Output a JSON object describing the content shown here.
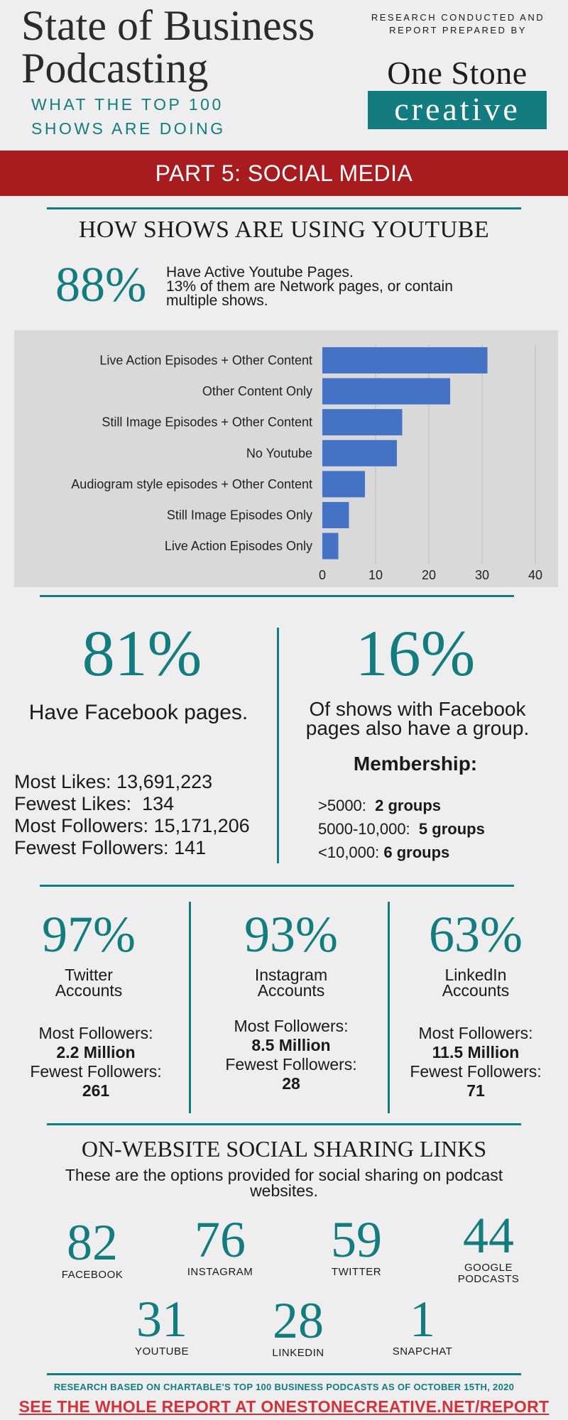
{
  "header": {
    "title_line1": "State of Business",
    "title_line2": "Podcasting",
    "subtitle": "What the top 100 shows are doing",
    "research_credit": "Research conducted and report prepared by",
    "brand_top": "One Stone",
    "brand_bottom": "creative"
  },
  "banner": {
    "text": "PART 5: SOCIAL MEDIA"
  },
  "youtube": {
    "heading": "HOW SHOWS ARE USING YOUTUBE",
    "percent": "88%",
    "line1": "Have Active Youtube Pages.",
    "line2": "13% of them are Network pages, or contain multiple shows."
  },
  "chart_data": {
    "type": "bar",
    "orientation": "horizontal",
    "categories": [
      "Live Action Episodes + Other Content",
      "Other Content Only",
      "Still Image Episodes + Other Content",
      "No Youtube",
      "Audiogram style episodes + Other Content",
      "Still Image Episodes Only",
      "Live Action Episodes Only"
    ],
    "values": [
      31,
      24,
      15,
      14,
      8,
      5,
      3
    ],
    "xlim": [
      0,
      40
    ],
    "xticks": [
      "0",
      "10",
      "20",
      "30",
      "40"
    ],
    "grid": true,
    "bar_color": "#4472c4"
  },
  "facebook": {
    "percent": "81%",
    "desc": "Have Facebook pages.",
    "stats": [
      {
        "label": "Most Likes:",
        "value": "13,691,223"
      },
      {
        "label": "Fewest Likes:",
        "value": "134"
      },
      {
        "label": "Most Followers:",
        "value": "15,171,206"
      },
      {
        "label": "Fewest Followers:",
        "value": "141"
      }
    ],
    "group_percent": "16%",
    "group_desc": "Of shows with Facebook pages also have a group.",
    "membership_title": "Membership:",
    "membership": [
      {
        "label": ">5000:",
        "value": "2 groups"
      },
      {
        "label": "5000-10,000:",
        "value": "5 groups"
      },
      {
        "label": "<10,000:",
        "value": "6 groups"
      }
    ]
  },
  "platforms": [
    {
      "percent": "97%",
      "name": "Twitter",
      "sub": "Accounts",
      "most_label": "Most Followers:",
      "most": "2.2 Million",
      "fewest_label": "Fewest Followers:",
      "fewest": "261"
    },
    {
      "percent": "93%",
      "name": "Instagram",
      "sub": "Accounts",
      "most_label": "Most Followers:",
      "most": "8.5 Million",
      "fewest_label": "Fewest Followers:",
      "fewest": "28"
    },
    {
      "percent": "63%",
      "name": "LinkedIn",
      "sub": "Accounts",
      "most_label": "Most Followers:",
      "most": "11.5 Million",
      "fewest_label": "Fewest Followers:",
      "fewest": "71"
    }
  ],
  "sharing": {
    "heading": "ON-WEBSITE SOCIAL SHARING LINKS",
    "desc": "These are the options provided for social sharing on podcast websites.",
    "items": [
      {
        "number": "82",
        "label": "Facebook"
      },
      {
        "number": "76",
        "label": "Instagram"
      },
      {
        "number": "59",
        "label": "Twitter"
      },
      {
        "number": "44",
        "label": "Google Podcasts"
      },
      {
        "number": "31",
        "label": "Youtube"
      },
      {
        "number": "28",
        "label": "LinkedIn"
      },
      {
        "number": "1",
        "label": "Snapchat"
      }
    ]
  },
  "footer": {
    "note": "Research based on Chartable's top 100 business podcasts as of October 15th, 2020",
    "link": "See the whole report at onestonecreative.net/report"
  }
}
